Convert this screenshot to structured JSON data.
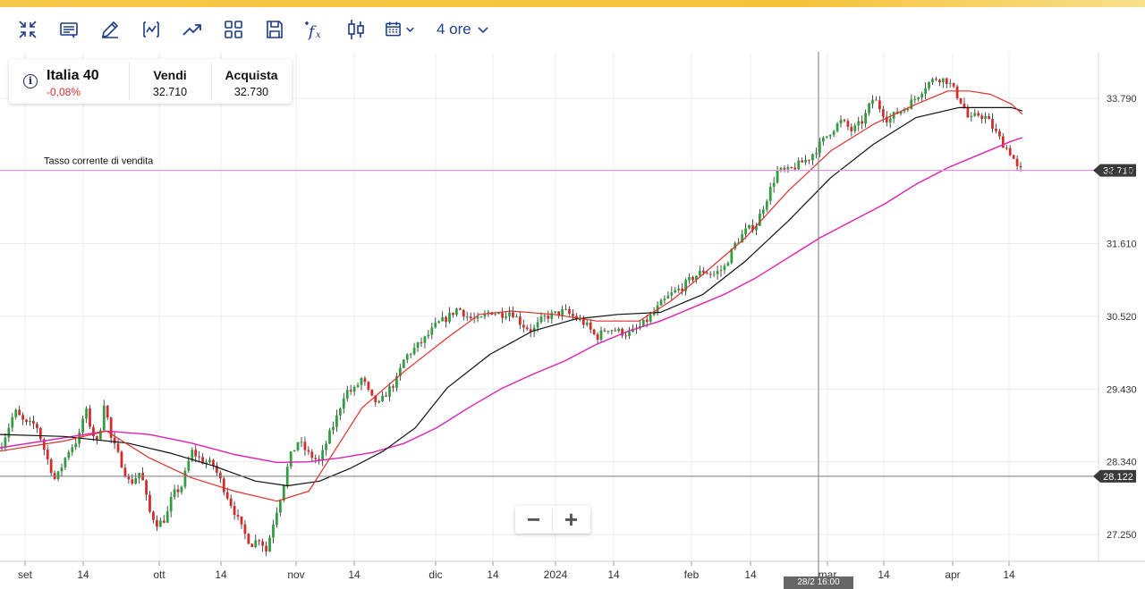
{
  "toolbar": {
    "buttons": [
      {
        "name": "collapse-icon"
      },
      {
        "name": "notes-icon"
      },
      {
        "name": "pencil-icon"
      },
      {
        "name": "chart-indicator-icon"
      },
      {
        "name": "trend-up-icon"
      },
      {
        "name": "layout-grid-icon"
      },
      {
        "name": "save-icon"
      },
      {
        "name": "function-icon"
      },
      {
        "name": "candlestick-icon"
      },
      {
        "name": "calendar-icon"
      }
    ],
    "timeframe": "4 ore"
  },
  "instrument": {
    "name": "Italia 40",
    "change": "-0,08%",
    "sell_label": "Vendi",
    "sell_value": "32.710",
    "buy_label": "Acquista",
    "buy_value": "32.730",
    "info_glyph": "i"
  },
  "colors": {
    "up": "#2e9e3e",
    "down": "#d62a2a",
    "sma_fast": "#e0302a",
    "sma_mid": "#111111",
    "sma_slow": "#e020b0",
    "sell_line": "#f08be8",
    "accent": "#1f3f99",
    "brand_bar": "#f5c33a"
  },
  "zoom": {
    "minus": "−",
    "plus": "+"
  },
  "crosshair_time": "28/2 16:00",
  "chart_data": {
    "type": "candlestick",
    "title": "",
    "x_ticks": [
      "set",
      "14",
      "ott",
      "14",
      "nov",
      "14",
      "dic",
      "14",
      "2024",
      "14",
      "feb",
      "14",
      "mar",
      "14",
      "apr",
      "14"
    ],
    "y_ticks": [
      27250,
      28340,
      29430,
      30520,
      31610,
      32710,
      33790
    ],
    "y_tick_labels": [
      "27.250",
      "28.340",
      "29.430",
      "30.520",
      "31.610",
      "32.710",
      "33.790"
    ],
    "ylim": [
      26900,
      34300
    ],
    "grid": true,
    "sell_rate": {
      "value": 32710,
      "label": "Tasso corrente di vendita",
      "tag": "32.710"
    },
    "crosshair_value": {
      "value": 28122,
      "tag": "28.122"
    },
    "price_anchors": [
      [
        0,
        28540
      ],
      [
        0.7,
        29100
      ],
      [
        1.2,
        28900
      ],
      [
        1.7,
        28900
      ],
      [
        2.2,
        28400
      ],
      [
        2.6,
        28050
      ],
      [
        3.2,
        28500
      ],
      [
        3.7,
        28700
      ],
      [
        4.0,
        29150
      ],
      [
        4.3,
        28800
      ],
      [
        4.6,
        28600
      ],
      [
        4.9,
        29270
      ],
      [
        5.2,
        28700
      ],
      [
        5.6,
        28400
      ],
      [
        6.1,
        28000
      ],
      [
        6.6,
        28200
      ],
      [
        7.0,
        27600
      ],
      [
        7.4,
        27400
      ],
      [
        7.8,
        27500
      ],
      [
        8.1,
        27850
      ],
      [
        8.5,
        27950
      ],
      [
        9.0,
        28500
      ],
      [
        9.5,
        28350
      ],
      [
        10.0,
        28300
      ],
      [
        10.5,
        27950
      ],
      [
        11.0,
        27600
      ],
      [
        11.4,
        27300
      ],
      [
        11.8,
        27100
      ],
      [
        12.2,
        27200
      ],
      [
        12.5,
        27000
      ],
      [
        12.8,
        27400
      ],
      [
        13.2,
        27850
      ],
      [
        13.6,
        28400
      ],
      [
        14.0,
        28650
      ],
      [
        14.5,
        28450
      ],
      [
        15.0,
        28340
      ],
      [
        15.4,
        28700
      ],
      [
        15.8,
        29000
      ],
      [
        16.2,
        29400
      ],
      [
        16.6,
        29400
      ],
      [
        17.0,
        29600
      ],
      [
        17.4,
        29300
      ],
      [
        17.8,
        29200
      ],
      [
        18.2,
        29400
      ],
      [
        18.6,
        29550
      ],
      [
        19.0,
        29900
      ],
      [
        19.5,
        30050
      ],
      [
        20.0,
        30200
      ],
      [
        20.5,
        30400
      ],
      [
        21.0,
        30500
      ],
      [
        21.5,
        30650
      ],
      [
        22.0,
        30500
      ],
      [
        22.5,
        30450
      ],
      [
        23.0,
        30600
      ],
      [
        23.5,
        30550
      ],
      [
        24.0,
        30600
      ],
      [
        24.5,
        30400
      ],
      [
        25.0,
        30300
      ],
      [
        25.5,
        30500
      ],
      [
        26.0,
        30550
      ],
      [
        26.5,
        30600
      ],
      [
        27.0,
        30500
      ],
      [
        27.5,
        30400
      ],
      [
        28.0,
        30200
      ],
      [
        28.5,
        30350
      ],
      [
        29.0,
        30300
      ],
      [
        29.5,
        30250
      ],
      [
        30.0,
        30350
      ],
      [
        30.5,
        30500
      ],
      [
        31.0,
        30700
      ],
      [
        31.5,
        30850
      ],
      [
        32.0,
        30950
      ],
      [
        32.5,
        31100
      ],
      [
        33.0,
        31200
      ],
      [
        33.5,
        31150
      ],
      [
        34.0,
        31250
      ],
      [
        34.5,
        31600
      ],
      [
        35.0,
        31800
      ],
      [
        35.5,
        31900
      ],
      [
        36.0,
        32300
      ],
      [
        36.5,
        32700
      ],
      [
        37.0,
        32700
      ],
      [
        37.5,
        32800
      ],
      [
        38.0,
        32900
      ],
      [
        38.5,
        33100
      ],
      [
        39.0,
        33300
      ],
      [
        39.5,
        33450
      ],
      [
        40.0,
        33300
      ],
      [
        40.5,
        33450
      ],
      [
        41.0,
        33800
      ],
      [
        41.3,
        33650
      ],
      [
        41.7,
        33450
      ],
      [
        42.0,
        33550
      ],
      [
        42.5,
        33650
      ],
      [
        43.0,
        33800
      ],
      [
        43.5,
        34000
      ],
      [
        44.0,
        34100
      ],
      [
        44.5,
        34050
      ],
      [
        44.8,
        33900
      ],
      [
        45.2,
        33700
      ],
      [
        45.5,
        33450
      ],
      [
        45.9,
        33550
      ],
      [
        46.3,
        33500
      ],
      [
        46.7,
        33300
      ],
      [
        47.1,
        33100
      ],
      [
        47.5,
        32950
      ],
      [
        47.8,
        32700
      ],
      [
        48.0,
        32720
      ]
    ],
    "sma_fast": [
      [
        0,
        28500
      ],
      [
        3,
        28650
      ],
      [
        5,
        28800
      ],
      [
        7,
        28400
      ],
      [
        9,
        28100
      ],
      [
        11,
        27900
      ],
      [
        13,
        27750
      ],
      [
        14.5,
        27900
      ],
      [
        15.5,
        28400
      ],
      [
        17,
        29150
      ],
      [
        19,
        29700
      ],
      [
        21,
        30200
      ],
      [
        22.5,
        30550
      ],
      [
        24,
        30600
      ],
      [
        26,
        30550
      ],
      [
        28,
        30450
      ],
      [
        30,
        30450
      ],
      [
        31.5,
        30750
      ],
      [
        33,
        31150
      ],
      [
        35,
        31700
      ],
      [
        37,
        32400
      ],
      [
        39,
        33000
      ],
      [
        41,
        33400
      ],
      [
        43,
        33700
      ],
      [
        44.5,
        33900
      ],
      [
        45.5,
        33900
      ],
      [
        46.5,
        33850
      ],
      [
        47.5,
        33700
      ],
      [
        48.0,
        33550
      ]
    ],
    "sma_mid": [
      [
        0,
        28750
      ],
      [
        3,
        28720
      ],
      [
        6,
        28620
      ],
      [
        8,
        28470
      ],
      [
        10,
        28280
      ],
      [
        12,
        28050
      ],
      [
        13.5,
        27980
      ],
      [
        15,
        28050
      ],
      [
        16.5,
        28250
      ],
      [
        18,
        28500
      ],
      [
        19.5,
        28850
      ],
      [
        21,
        29450
      ],
      [
        23,
        29950
      ],
      [
        25,
        30300
      ],
      [
        27,
        30480
      ],
      [
        29,
        30550
      ],
      [
        31,
        30580
      ],
      [
        33,
        30850
      ],
      [
        35,
        31350
      ],
      [
        37,
        31950
      ],
      [
        39,
        32600
      ],
      [
        41,
        33100
      ],
      [
        43,
        33500
      ],
      [
        45,
        33650
      ],
      [
        46.5,
        33650
      ],
      [
        47.5,
        33650
      ],
      [
        48.0,
        33600
      ]
    ],
    "sma_slow": [
      [
        0,
        28550
      ],
      [
        3,
        28700
      ],
      [
        5,
        28800
      ],
      [
        7,
        28750
      ],
      [
        9,
        28620
      ],
      [
        11,
        28450
      ],
      [
        13,
        28330
      ],
      [
        14.5,
        28340
      ],
      [
        16,
        28400
      ],
      [
        17.5,
        28480
      ],
      [
        19,
        28620
      ],
      [
        20.5,
        28850
      ],
      [
        22,
        29150
      ],
      [
        23.5,
        29430
      ],
      [
        25,
        29650
      ],
      [
        26.5,
        29850
      ],
      [
        28,
        30100
      ],
      [
        29.5,
        30300
      ],
      [
        31,
        30450
      ],
      [
        32.5,
        30650
      ],
      [
        34,
        30850
      ],
      [
        35.5,
        31100
      ],
      [
        37,
        31400
      ],
      [
        38.5,
        31700
      ],
      [
        40,
        31950
      ],
      [
        41.5,
        32200
      ],
      [
        43,
        32500
      ],
      [
        44.5,
        32750
      ],
      [
        46,
        32950
      ],
      [
        47.5,
        33150
      ],
      [
        48.0,
        33200
      ]
    ]
  }
}
